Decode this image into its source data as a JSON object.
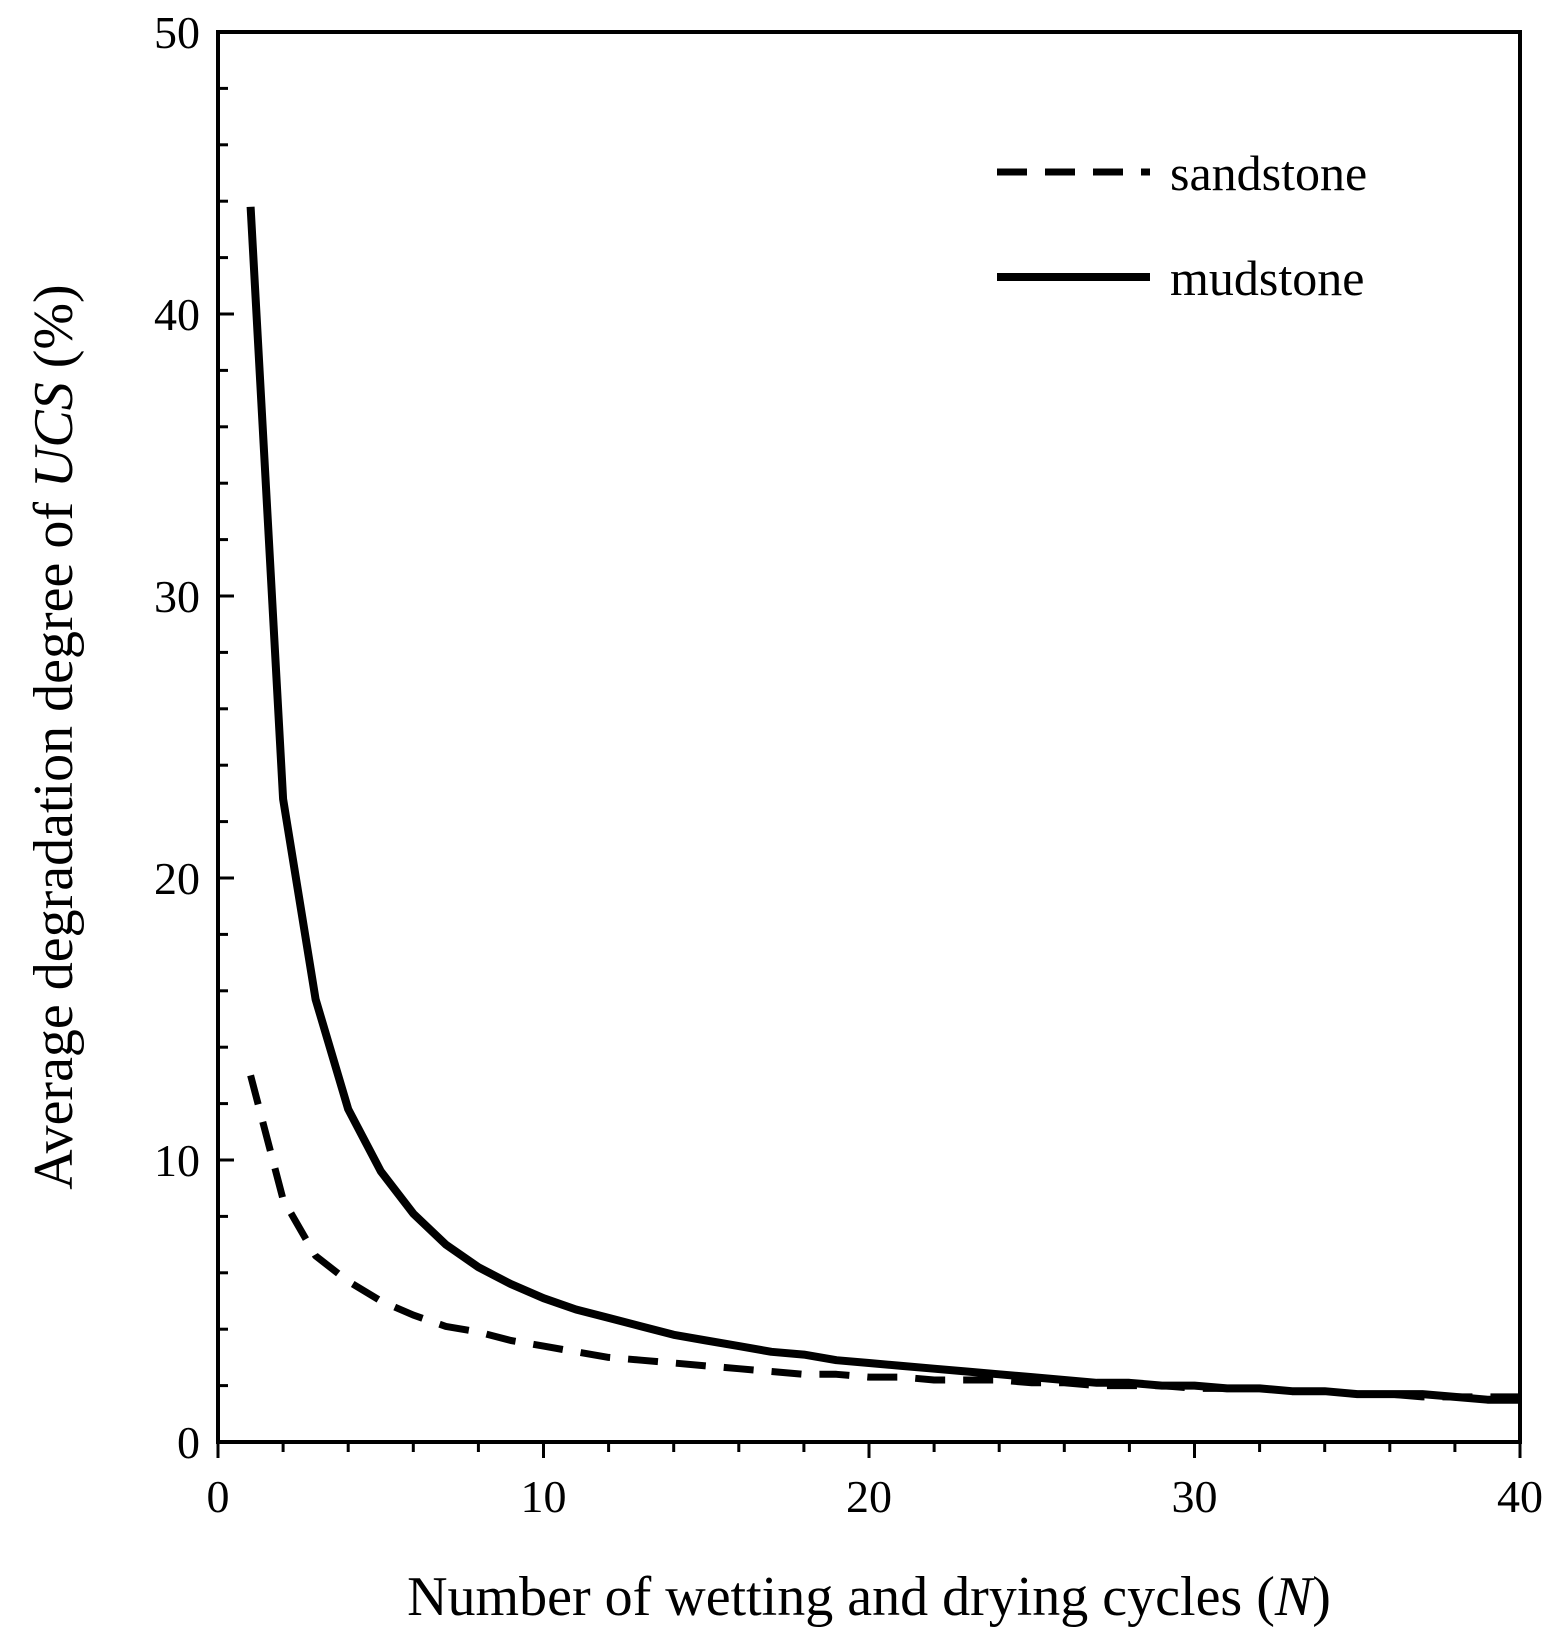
{
  "chart_data": {
    "type": "line",
    "title": "",
    "xlabel": {
      "prefix": "Number of wetting and drying cycles (",
      "italic": "N",
      "suffix": ")"
    },
    "ylabel": {
      "prefix": "Average degradation degree of ",
      "italic": "UCS",
      "suffix": " (%)"
    },
    "xlim": [
      0,
      40
    ],
    "ylim": [
      0,
      50
    ],
    "x_major_ticks": [
      0,
      10,
      20,
      30,
      40
    ],
    "x_tick_labels": [
      "0",
      "10",
      "20",
      "30",
      "40"
    ],
    "y_major_ticks": [
      0,
      10,
      20,
      30,
      40,
      50
    ],
    "y_tick_labels": [
      "0",
      "10",
      "20",
      "30",
      "40",
      "50"
    ],
    "x_minor_step": 2,
    "y_minor_step": 2,
    "grid": false,
    "legend_position": "top-right",
    "series": [
      {
        "name": "sandstone",
        "style": "dashed",
        "color": "#000000",
        "x": [
          1,
          2,
          3,
          4,
          5,
          6,
          7,
          8,
          9,
          10,
          11,
          12,
          13,
          14,
          15,
          16,
          17,
          18,
          19,
          20,
          21,
          22,
          23,
          24,
          25,
          26,
          27,
          28,
          29,
          30,
          31,
          32,
          33,
          34,
          35,
          36,
          37,
          38,
          39,
          40
        ],
        "values": [
          13.0,
          8.6,
          6.6,
          5.7,
          5.0,
          4.5,
          4.1,
          3.9,
          3.6,
          3.4,
          3.2,
          3.0,
          2.9,
          2.8,
          2.7,
          2.6,
          2.5,
          2.4,
          2.4,
          2.3,
          2.3,
          2.2,
          2.2,
          2.2,
          2.1,
          2.1,
          2.0,
          2.0,
          2.0,
          1.9,
          1.9,
          1.9,
          1.8,
          1.8,
          1.7,
          1.7,
          1.6,
          1.6,
          1.6,
          1.6
        ]
      },
      {
        "name": "mudstone",
        "style": "solid",
        "color": "#000000",
        "x": [
          1,
          2,
          3,
          4,
          5,
          6,
          7,
          8,
          9,
          10,
          11,
          12,
          13,
          14,
          15,
          16,
          17,
          18,
          19,
          20,
          21,
          22,
          23,
          24,
          25,
          26,
          27,
          28,
          29,
          30,
          31,
          32,
          33,
          34,
          35,
          36,
          37,
          38,
          39,
          40
        ],
        "values": [
          43.8,
          22.8,
          15.7,
          11.8,
          9.6,
          8.1,
          7.0,
          6.2,
          5.6,
          5.1,
          4.7,
          4.4,
          4.1,
          3.8,
          3.6,
          3.4,
          3.2,
          3.1,
          2.9,
          2.8,
          2.7,
          2.6,
          2.5,
          2.4,
          2.3,
          2.2,
          2.1,
          2.1,
          2.0,
          2.0,
          1.9,
          1.9,
          1.8,
          1.8,
          1.7,
          1.7,
          1.7,
          1.6,
          1.5,
          1.5
        ]
      }
    ]
  }
}
